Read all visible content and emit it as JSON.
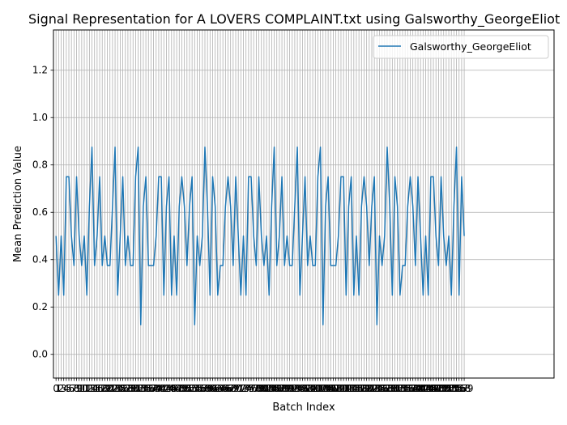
{
  "chart_data": {
    "type": "line",
    "title": "Signal Representation for A LOVERS COMPLAINT.txt using Galsworthy_GeorgeEliot",
    "xlabel": "Batch Index",
    "ylabel": "Mean Prediction Value",
    "xlim": [
      -1,
      194
    ],
    "ylim": [
      -0.1,
      1.37
    ],
    "yticks": [
      "0.0",
      "0.2",
      "0.4",
      "0.6",
      "0.8",
      "1.0",
      "1.2"
    ],
    "grid": true,
    "legend_position": "top-right",
    "series": [
      {
        "name": "Galsworthy_GeorgeEliot",
        "color": "#1f77b4",
        "values": [
          0.5,
          0.25,
          0.5,
          0.25,
          0.75,
          0.75,
          0.5,
          0.375,
          0.75,
          0.5,
          0.375,
          0.5,
          0.25,
          0.625,
          0.875,
          0.375,
          0.5,
          0.75,
          0.375,
          0.5,
          0.375,
          0.375,
          0.625,
          0.875,
          0.25,
          0.5,
          0.75,
          0.375,
          0.5,
          0.375,
          0.375,
          0.75,
          0.875,
          0.125,
          0.625,
          0.75,
          0.375,
          0.375,
          0.375,
          0.5,
          0.75,
          0.75,
          0.25,
          0.625,
          0.75,
          0.25,
          0.5,
          0.25,
          0.625,
          0.75,
          0.625,
          0.375,
          0.625,
          0.75,
          0.125,
          0.5,
          0.375,
          0.5,
          0.875,
          0.625,
          0.25,
          0.75,
          0.625,
          0.25,
          0.375,
          0.375,
          0.625,
          0.75,
          0.625,
          0.375,
          0.75,
          0.5,
          0.25,
          0.5,
          0.25,
          0.75,
          0.75,
          0.5,
          0.375,
          0.75,
          0.5,
          0.375,
          0.5,
          0.25,
          0.625,
          0.875,
          0.375,
          0.5,
          0.75,
          0.375,
          0.5,
          0.375,
          0.375,
          0.625,
          0.875,
          0.25,
          0.5,
          0.75,
          0.375,
          0.5,
          0.375,
          0.375,
          0.75,
          0.875,
          0.125,
          0.625,
          0.75,
          0.375,
          0.375,
          0.375,
          0.5,
          0.75,
          0.75,
          0.25,
          0.625,
          0.75,
          0.25,
          0.5,
          0.25,
          0.625,
          0.75,
          0.625,
          0.375,
          0.625,
          0.75,
          0.125,
          0.5,
          0.375,
          0.5,
          0.875,
          0.625,
          0.25,
          0.75,
          0.625,
          0.25,
          0.375,
          0.375,
          0.625,
          0.75,
          0.625,
          0.375,
          0.75,
          0.5,
          0.25,
          0.5,
          0.25,
          0.75,
          0.75,
          0.5,
          0.375,
          0.75,
          0.5,
          0.375,
          0.5,
          0.25,
          0.625,
          0.875,
          0.25,
          0.75,
          0.5
        ]
      }
    ]
  }
}
